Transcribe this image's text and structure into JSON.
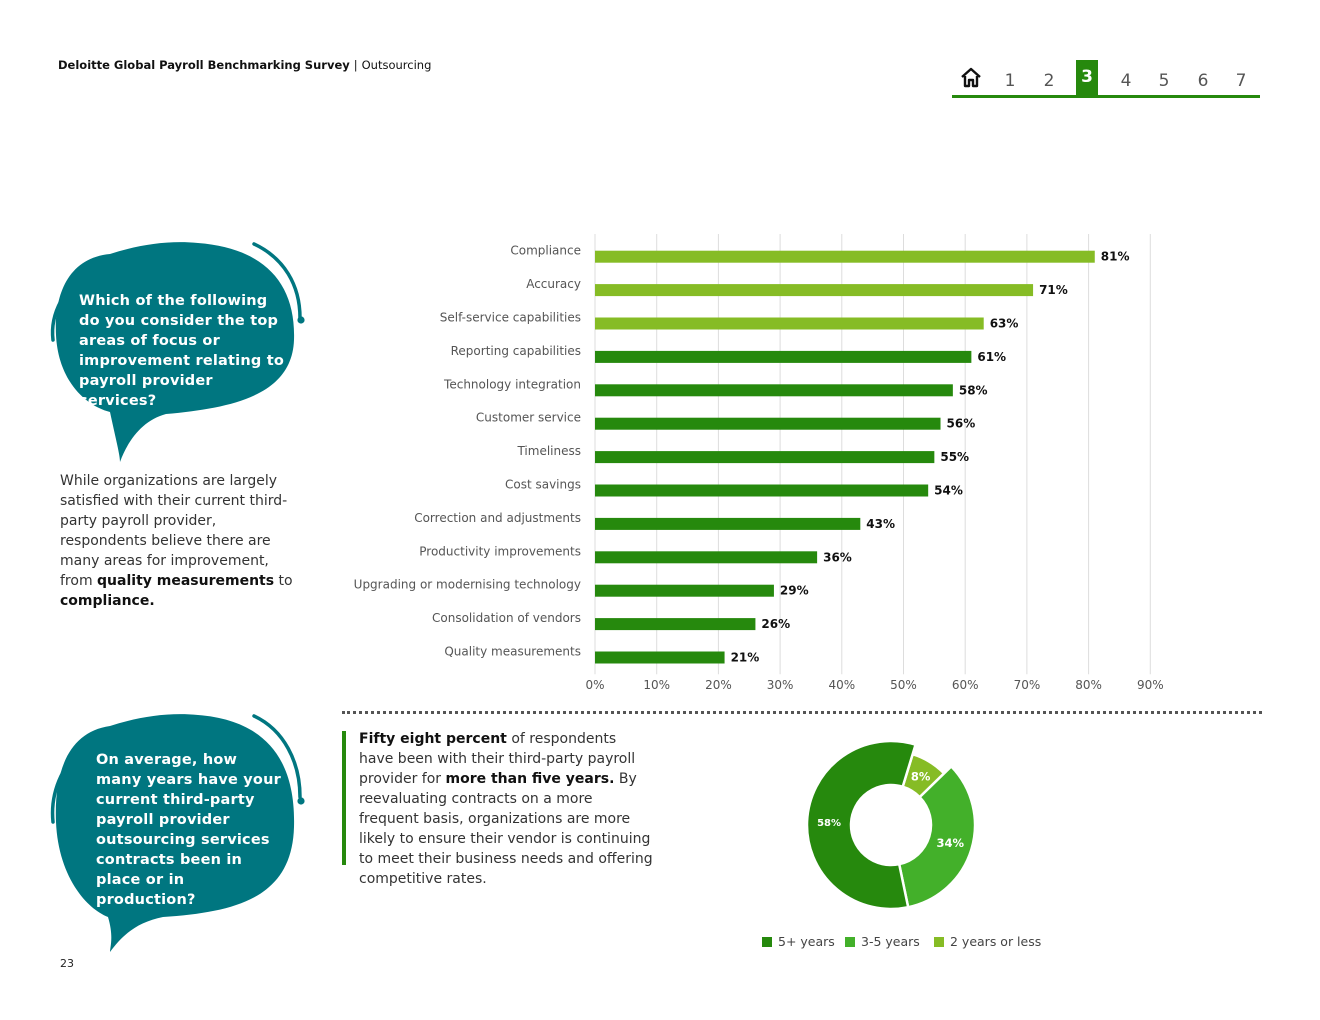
{
  "header": {
    "survey_title": "Deloitte Global Payroll Benchmarking Survey",
    "separator": "|",
    "section": "Outsourcing"
  },
  "nav": {
    "home_icon": "home-icon",
    "pages": [
      "1",
      "2",
      "3",
      "4",
      "5",
      "6",
      "7"
    ],
    "active": "3",
    "accent_color": "#26890d"
  },
  "question1": {
    "text": "Which of the following do you consider the top areas of focus or improvement relating to payroll provider services?"
  },
  "intro_paragraph": {
    "text_1": "While organizations are largely satisfied with their current third-party payroll provider, respondents believe there are many areas for improvement, from ",
    "bold_1": "quality measurements",
    "text_2": " to ",
    "bold_2": "compliance."
  },
  "question2": {
    "text": "On average, how many years have your current third-party payroll provider outsourcing services contracts been in place or in production?"
  },
  "tenure_paragraph": {
    "bold_1": "Fifty eight percent",
    "text_1": " of respondents have been with their third-party payroll provider for ",
    "bold_2": "more than five years.",
    "text_2": " By reevaluating contracts on a more frequent basis, organizations are more likely to ensure their vendor is continuing to meet their business needs and offering competitive rates."
  },
  "page_number": "23",
  "chart_data": [
    {
      "type": "bar",
      "orientation": "horizontal",
      "categories": [
        "Compliance",
        "Accuracy",
        "Self-service capabilities",
        "Reporting capabilities",
        "Technology integration",
        "Customer service",
        "Timeliness",
        "Cost savings",
        "Correction and adjustments",
        "Productivity improvements",
        "Upgrading or modernising technology",
        "Consolidation of vendors",
        "Quality measurements"
      ],
      "values": [
        81,
        71,
        63,
        61,
        58,
        56,
        55,
        54,
        43,
        36,
        29,
        26,
        21
      ],
      "value_labels": [
        "81%",
        "71%",
        "63%",
        "61%",
        "58%",
        "56%",
        "55%",
        "54%",
        "43%",
        "36%",
        "29%",
        "26%",
        "21%"
      ],
      "highlight_top_n": 3,
      "colors": {
        "highlight": "#86bc25",
        "default": "#26890d"
      },
      "xlim": [
        0,
        90
      ],
      "x_ticks": [
        "0%",
        "10%",
        "20%",
        "30%",
        "40%",
        "50%",
        "60%",
        "70%",
        "80%",
        "90%"
      ],
      "grid": true
    },
    {
      "type": "pie",
      "style": "donut",
      "categories": [
        "5+ years",
        "3-5 years",
        "2 years or less"
      ],
      "values": [
        58,
        34,
        8
      ],
      "labels": [
        "58%",
        "34%",
        "8%"
      ],
      "colors": [
        "#26890d",
        "#43b02a",
        "#86bc25"
      ],
      "legend": "bottom"
    }
  ]
}
